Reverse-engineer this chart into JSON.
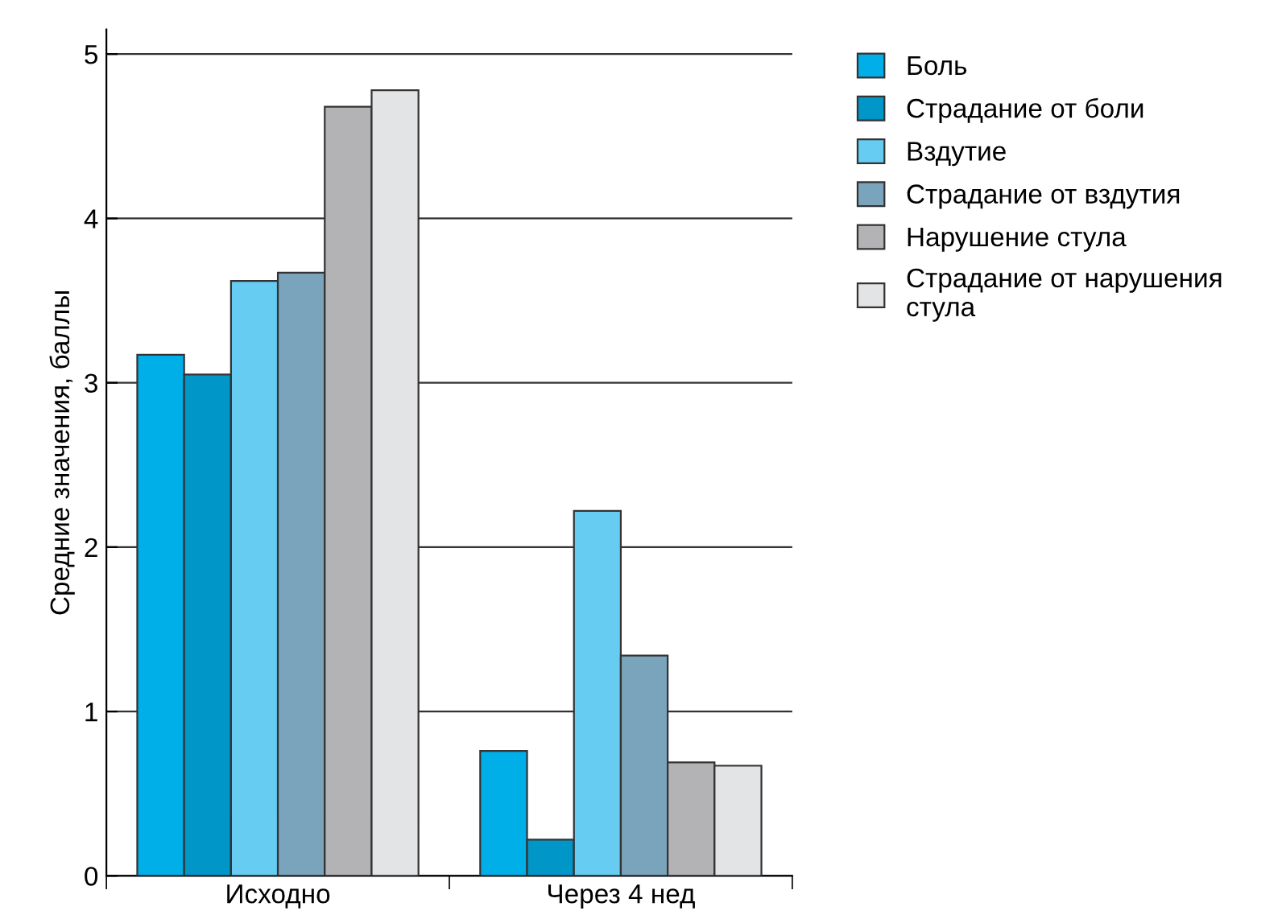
{
  "chart_data": {
    "type": "bar",
    "ylabel": "Средние значения, баллы",
    "categories": [
      "Исходно",
      "Через 4 нед"
    ],
    "series": [
      {
        "name": "Боль",
        "color": "#00aee8",
        "values": [
          3.17,
          0.76
        ]
      },
      {
        "name": "Страдание от боли",
        "color": "#0096c8",
        "values": [
          3.05,
          0.22
        ]
      },
      {
        "name": "Вздутие",
        "color": "#66ccf2",
        "values": [
          3.62,
          2.22
        ]
      },
      {
        "name": "Страдание от вздутия",
        "color": "#7aa4bb",
        "values": [
          3.67,
          1.34
        ]
      },
      {
        "name": "Нарушение стула",
        "color": "#b3b3b5",
        "values": [
          4.68,
          0.69
        ]
      },
      {
        "name": "Страдание от нарушения\nстула",
        "color": "#e3e4e6",
        "values": [
          4.78,
          0.67
        ]
      }
    ],
    "ylim": [
      0,
      5.15
    ],
    "yticks": [
      0,
      1,
      2,
      3,
      4,
      5
    ],
    "grid": "y",
    "legend": "top right"
  }
}
